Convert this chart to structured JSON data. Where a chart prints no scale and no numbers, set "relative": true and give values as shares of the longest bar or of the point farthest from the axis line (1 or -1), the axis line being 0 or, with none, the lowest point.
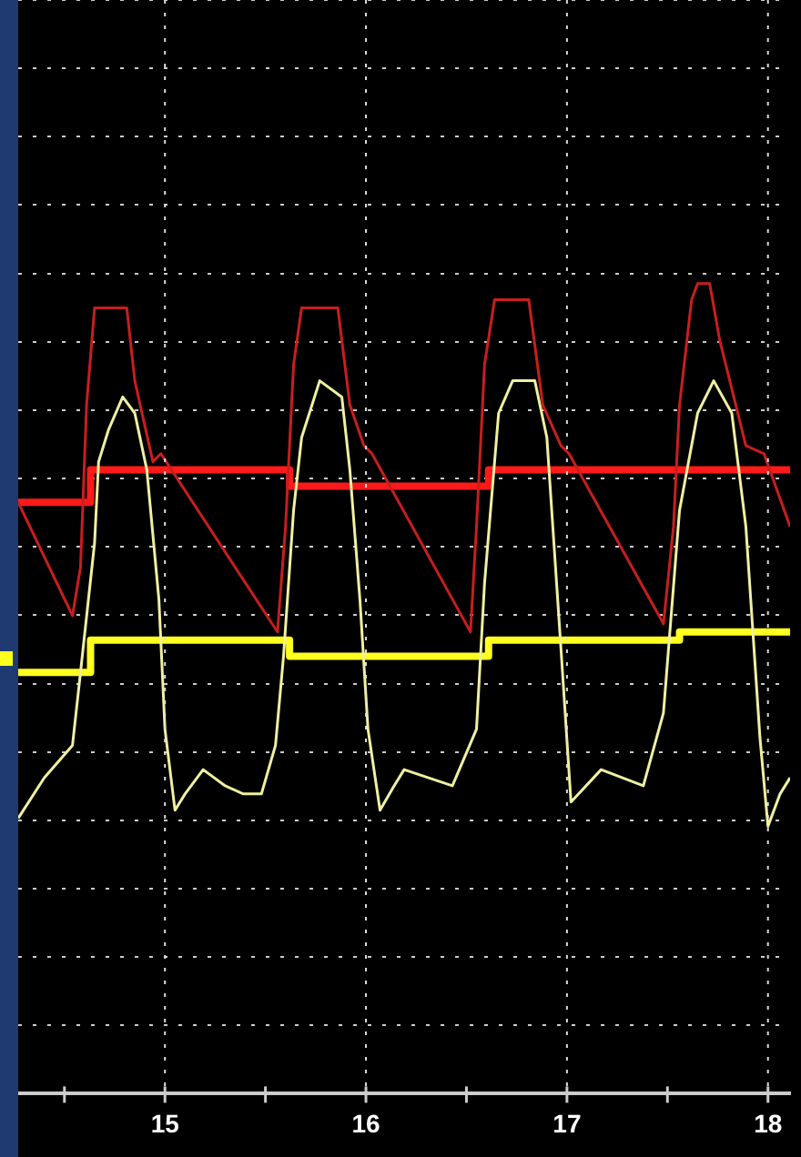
{
  "chart_data": {
    "type": "line",
    "relative": true,
    "xlim": [
      14.27,
      18.11
    ],
    "xticks": [
      {
        "value": 14.5,
        "label": null
      },
      15,
      {
        "value": 15.5,
        "label": null
      },
      16,
      {
        "value": 16.5,
        "label": null
      },
      17,
      {
        "value": 17.5,
        "label": null
      },
      18
    ],
    "grid": true,
    "legend": false,
    "marker": "none",
    "line_style": "solid",
    "series": [
      {
        "type": "line",
        "color": "#c81e1e",
        "x": [
          14.27,
          14.54,
          14.58,
          14.61,
          14.65,
          14.81,
          14.85,
          14.94,
          14.98,
          15.56,
          15.6,
          15.64,
          15.68,
          15.86,
          15.92,
          15.99,
          16.03,
          16.52,
          16.55,
          16.59,
          16.64,
          16.81,
          16.88,
          16.97,
          17.01,
          17.48,
          17.53,
          17.56,
          17.62,
          17.65,
          17.71,
          17.76,
          17.89,
          17.98,
          18.11
        ],
        "values": [
          0.73,
          0.59,
          0.65,
          0.85,
          0.97,
          0.97,
          0.88,
          0.78,
          0.79,
          0.57,
          0.7,
          0.9,
          0.97,
          0.97,
          0.85,
          0.8,
          0.79,
          0.57,
          0.7,
          0.9,
          0.98,
          0.98,
          0.85,
          0.8,
          0.79,
          0.58,
          0.7,
          0.85,
          0.98,
          1,
          1,
          0.93,
          0.8,
          0.79,
          0.7
        ]
      },
      {
        "type": "line",
        "color": "#f0f0a0",
        "x": [
          14.27,
          14.4,
          14.54,
          14.58,
          14.65,
          14.67,
          14.72,
          14.79,
          14.85,
          14.91,
          14.97,
          15,
          15.05,
          15.1,
          15.19,
          15.3,
          15.39,
          15.48,
          15.55,
          15.59,
          15.64,
          15.68,
          15.77,
          15.88,
          15.92,
          15.97,
          16.01,
          16.07,
          16.14,
          16.19,
          16.43,
          16.55,
          16.59,
          16.66,
          16.73,
          16.84,
          16.9,
          16.97,
          17.02,
          17.17,
          17.38,
          17.48,
          17.56,
          17.65,
          17.73,
          17.82,
          17.89,
          17.96,
          18,
          18.06,
          18.11
        ],
        "values": [
          0.34,
          0.39,
          0.43,
          0.52,
          0.68,
          0.78,
          0.82,
          0.86,
          0.84,
          0.77,
          0.61,
          0.45,
          0.35,
          0.37,
          0.4,
          0.38,
          0.37,
          0.37,
          0.43,
          0.54,
          0.72,
          0.81,
          0.88,
          0.86,
          0.77,
          0.61,
          0.45,
          0.35,
          0.38,
          0.4,
          0.38,
          0.45,
          0.63,
          0.84,
          0.88,
          0.88,
          0.81,
          0.55,
          0.36,
          0.4,
          0.38,
          0.47,
          0.72,
          0.84,
          0.88,
          0.84,
          0.7,
          0.44,
          0.33,
          0.37,
          0.39
        ]
      },
      {
        "type": "step",
        "color": "#ff1a1a",
        "x": [
          14.27,
          14.63,
          15.62,
          16.61,
          18.11
        ],
        "values": [
          0.73,
          0.77,
          0.75,
          0.77,
          0.77
        ]
      },
      {
        "type": "step",
        "color": "#ffff20",
        "x": [
          14.27,
          14.63,
          15.62,
          16.61,
          17.56,
          18.11
        ],
        "values": [
          0.52,
          0.56,
          0.54,
          0.56,
          0.57,
          0.57
        ]
      }
    ]
  }
}
